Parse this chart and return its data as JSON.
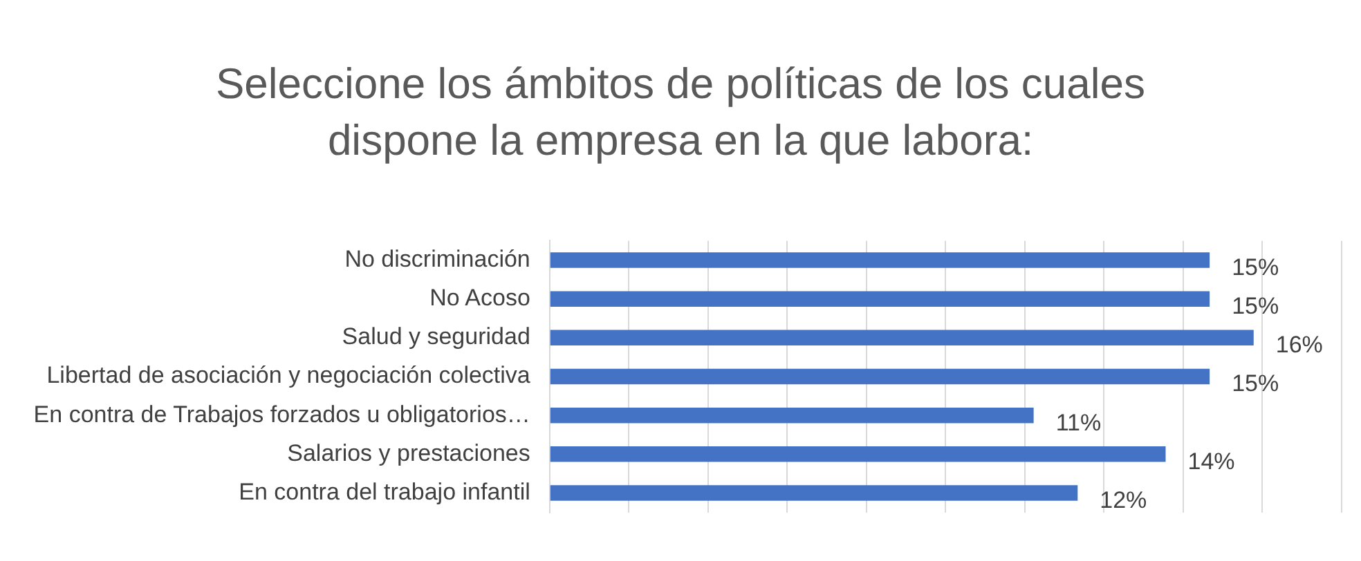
{
  "chart_data": {
    "type": "bar",
    "orientation": "horizontal",
    "title": "Seleccione los ámbitos de políticas de los cuales dispone la empresa en la que labora:",
    "categories": [
      "No discriminación",
      "No Acoso",
      "Salud y seguridad",
      "Libertad de asociación y negociación colectiva",
      "En contra de Trabajos forzados u obligatorios…",
      "Salarios y prestaciones",
      "En contra del trabajo infantil"
    ],
    "values": [
      15,
      15,
      16,
      15,
      11,
      14,
      12
    ],
    "value_labels": [
      "15%",
      "15%",
      "16%",
      "15%",
      "11%",
      "14%",
      "12%"
    ],
    "color": "#4472c4",
    "xlim": [
      0,
      18
    ],
    "xticks": [
      {
        "value": 0,
        "label": null
      },
      {
        "value": 1.8,
        "label": null
      },
      {
        "value": 3.6,
        "label": null
      },
      {
        "value": 5.4,
        "label": null
      },
      {
        "value": 7.2,
        "label": null
      },
      {
        "value": 9,
        "label": null
      },
      {
        "value": 10.8,
        "label": null
      },
      {
        "value": 12.6,
        "label": null
      },
      {
        "value": 14.4,
        "label": null
      },
      {
        "value": 16.2,
        "label": null
      },
      {
        "value": 18,
        "label": null
      }
    ],
    "grid": "x",
    "tick_labels": "y",
    "legend": false
  }
}
